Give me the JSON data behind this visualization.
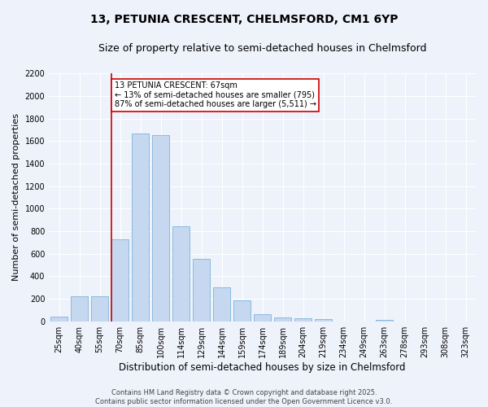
{
  "title": "13, PETUNIA CRESCENT, CHELMSFORD, CM1 6YP",
  "subtitle": "Size of property relative to semi-detached houses in Chelmsford",
  "xlabel": "Distribution of semi-detached houses by size in Chelmsford",
  "ylabel": "Number of semi-detached properties",
  "categories": [
    "25sqm",
    "40sqm",
    "55sqm",
    "70sqm",
    "85sqm",
    "100sqm",
    "114sqm",
    "129sqm",
    "144sqm",
    "159sqm",
    "174sqm",
    "189sqm",
    "204sqm",
    "219sqm",
    "234sqm",
    "249sqm",
    "263sqm",
    "278sqm",
    "293sqm",
    "308sqm",
    "323sqm"
  ],
  "values": [
    40,
    225,
    225,
    730,
    1670,
    1655,
    845,
    555,
    300,
    185,
    65,
    35,
    25,
    20,
    0,
    0,
    15,
    0,
    0,
    0,
    0
  ],
  "bar_color": "#c5d8f0",
  "bar_edge_color": "#6aaad4",
  "red_line_index": 2.575,
  "annotation_title": "13 PETUNIA CRESCENT: 67sqm",
  "annotation_line1": "← 13% of semi-detached houses are smaller (795)",
  "annotation_line2": "87% of semi-detached houses are larger (5,511) →",
  "annotation_box_color": "#ffffff",
  "annotation_box_edge": "#cc0000",
  "red_line_color": "#cc0000",
  "ylim": [
    0,
    2200
  ],
  "yticks": [
    0,
    200,
    400,
    600,
    800,
    1000,
    1200,
    1400,
    1600,
    1800,
    2000,
    2200
  ],
  "footer_line1": "Contains HM Land Registry data © Crown copyright and database right 2025.",
  "footer_line2": "Contains public sector information licensed under the Open Government Licence v3.0.",
  "bg_color": "#eef2fb",
  "title_fontsize": 10,
  "subtitle_fontsize": 9,
  "ylabel_fontsize": 8,
  "xlabel_fontsize": 8.5,
  "tick_fontsize": 7,
  "footer_fontsize": 6,
  "annot_fontsize": 7
}
